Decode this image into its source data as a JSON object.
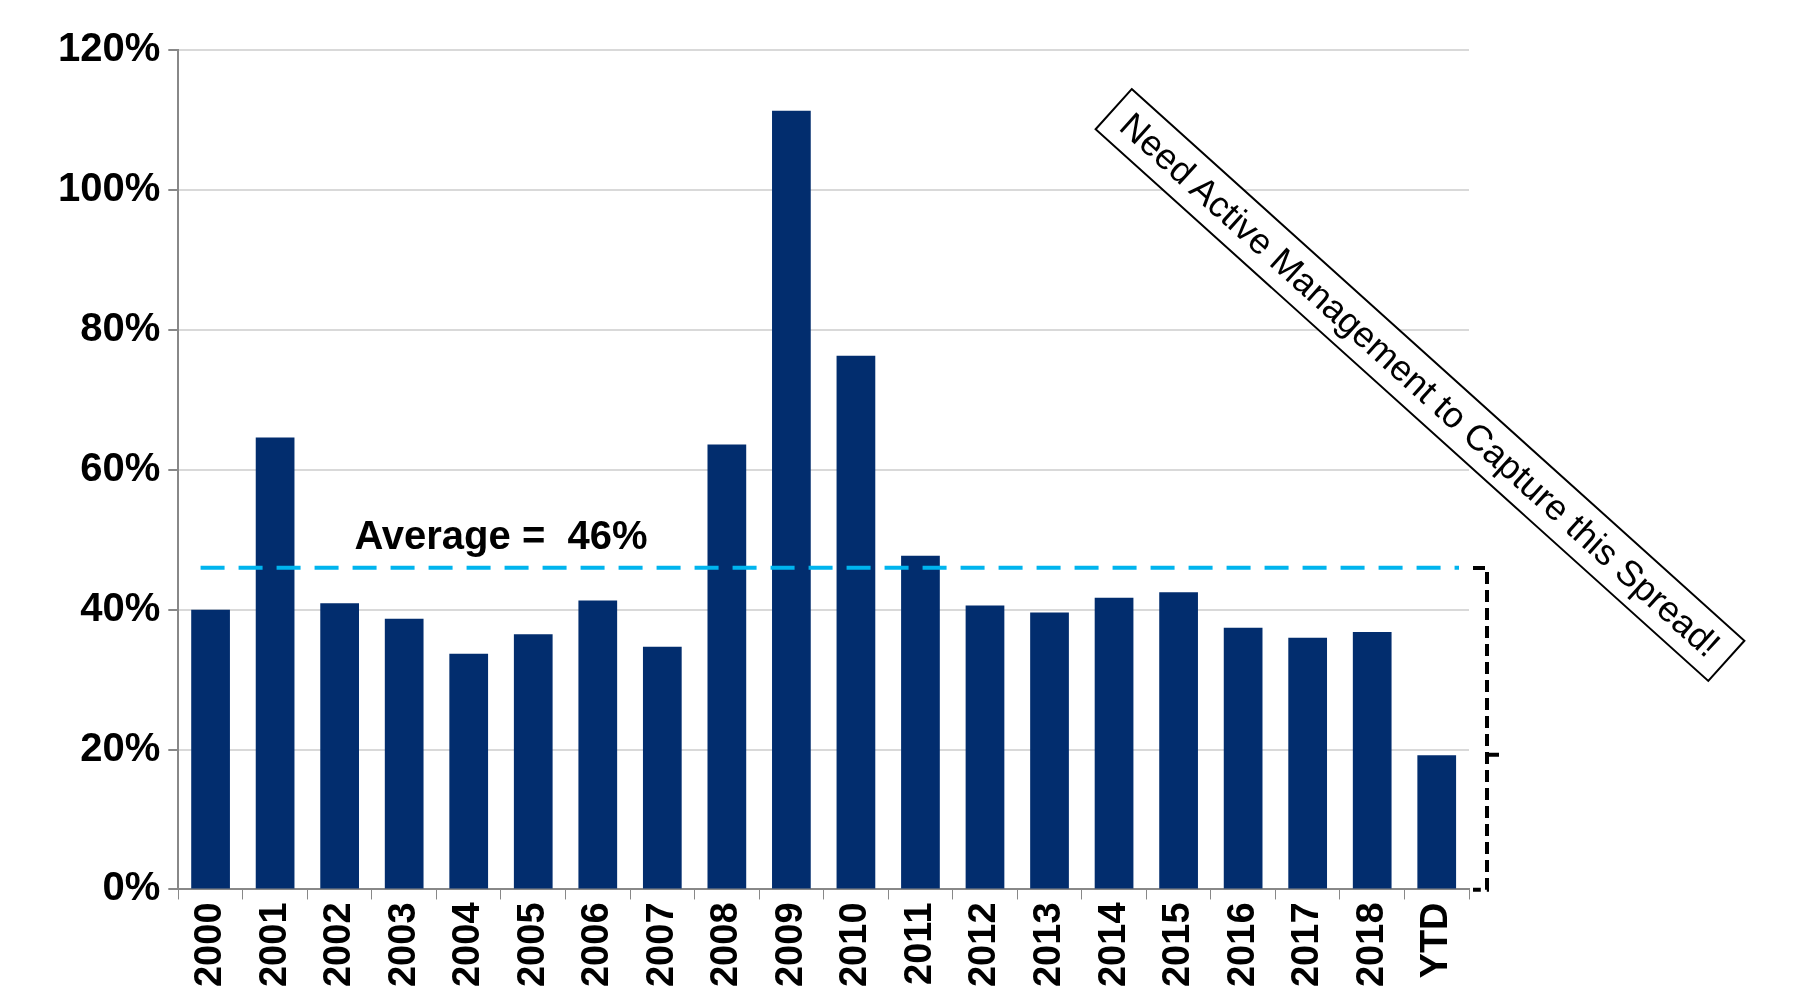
{
  "chart_data": {
    "type": "bar",
    "categories": [
      "2000",
      "2001",
      "2002",
      "2003",
      "2004",
      "2005",
      "2006",
      "2007",
      "2008",
      "2009",
      "2010",
      "2011",
      "2012",
      "2013",
      "2014",
      "2015",
      "2016",
      "2017",
      "2018",
      "YTD"
    ],
    "values": [
      40.0,
      64.6,
      40.9,
      38.7,
      33.7,
      36.5,
      41.3,
      34.7,
      63.6,
      111.3,
      76.3,
      47.7,
      40.6,
      39.6,
      41.7,
      42.5,
      37.4,
      36.0,
      36.8,
      19.2
    ],
    "color": "#022d6e",
    "ylim": [
      0,
      120
    ],
    "yticks": [
      {
        "value": 0,
        "label": "0%"
      },
      {
        "value": 20,
        "label": "20%"
      },
      {
        "value": 40,
        "label": "40%"
      },
      {
        "value": 60,
        "label": "60%"
      },
      {
        "value": 80,
        "label": "80%"
      },
      {
        "value": 100,
        "label": "100%"
      },
      {
        "value": 120,
        "label": "120%"
      }
    ],
    "grid": "y",
    "legend": false,
    "ref_lines": [
      {
        "axis": "y",
        "value": 46,
        "label": "Average =  46%",
        "color": "#00b4ee",
        "line_style": "dashed"
      }
    ],
    "annotations": [
      "Need Active Management to Capture this Spread!"
    ]
  }
}
